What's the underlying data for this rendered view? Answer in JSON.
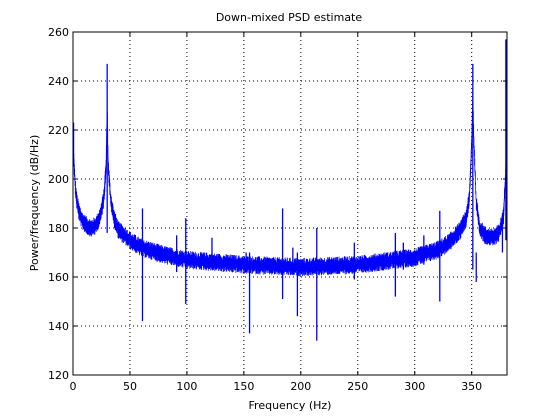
{
  "chart_data": {
    "type": "line",
    "title": "Down-mixed PSD estimate",
    "xlabel": "Frequency (Hz)",
    "ylabel": "Power/frequency (dB/Hz)",
    "xlim": [
      0,
      381
    ],
    "ylim": [
      120,
      260
    ],
    "xticks": [
      0,
      50,
      100,
      150,
      200,
      250,
      300,
      350
    ],
    "yticks": [
      120,
      140,
      160,
      180,
      200,
      220,
      240,
      260
    ],
    "xtick_labels": [
      "0",
      "50",
      "100",
      "150",
      "200",
      "250",
      "300",
      "350"
    ],
    "ytick_labels": [
      "120",
      "140",
      "160",
      "180",
      "200",
      "220",
      "240",
      "260"
    ],
    "grid": true,
    "grid_style": "dotted",
    "line_color": "#0000ff",
    "series": [
      {
        "name": "",
        "baseline": [
          [
            0,
            220
          ],
          [
            1,
            205
          ],
          [
            2,
            197
          ],
          [
            3,
            192
          ],
          [
            5,
            187
          ],
          [
            8,
            183
          ],
          [
            12,
            181
          ],
          [
            16,
            180
          ],
          [
            20,
            181
          ],
          [
            24,
            185
          ],
          [
            27,
            192
          ],
          [
            29,
            205
          ],
          [
            30,
            230
          ],
          [
            31,
            205
          ],
          [
            33,
            192
          ],
          [
            36,
            184
          ],
          [
            40,
            179
          ],
          [
            50,
            175
          ],
          [
            60,
            172
          ],
          [
            80,
            169
          ],
          [
            100,
            167
          ],
          [
            150,
            165
          ],
          [
            200,
            164
          ],
          [
            250,
            165
          ],
          [
            300,
            168
          ],
          [
            320,
            171
          ],
          [
            330,
            174
          ],
          [
            340,
            179
          ],
          [
            345,
            184
          ],
          [
            348,
            192
          ],
          [
            350,
            215
          ],
          [
            351,
            235
          ],
          [
            352,
            215
          ],
          [
            354,
            190
          ],
          [
            357,
            180
          ],
          [
            362,
            177
          ],
          [
            368,
            176
          ],
          [
            374,
            178
          ],
          [
            378,
            185
          ],
          [
            380,
            205
          ],
          [
            381,
            250
          ]
        ],
        "spikes": [
          {
            "x": 0.5,
            "max": 223,
            "min": 205
          },
          {
            "x": 30,
            "max": 247,
            "min": 178
          },
          {
            "x": 61,
            "max": 188,
            "min": 142
          },
          {
            "x": 91,
            "max": 177,
            "min": 162
          },
          {
            "x": 99,
            "max": 184,
            "min": 149
          },
          {
            "x": 122,
            "max": 176,
            "min": 163
          },
          {
            "x": 152,
            "max": 170,
            "min": 162
          },
          {
            "x": 155,
            "max": 170,
            "min": 137
          },
          {
            "x": 184,
            "max": 188,
            "min": 151
          },
          {
            "x": 193,
            "max": 172,
            "min": 161
          },
          {
            "x": 197,
            "max": 170,
            "min": 144
          },
          {
            "x": 214,
            "max": 180,
            "min": 134
          },
          {
            "x": 247,
            "max": 174,
            "min": 159
          },
          {
            "x": 283,
            "max": 178,
            "min": 152
          },
          {
            "x": 290,
            "max": 174,
            "min": 163
          },
          {
            "x": 308,
            "max": 177,
            "min": 165
          },
          {
            "x": 322,
            "max": 187,
            "min": 150
          },
          {
            "x": 351,
            "max": 247,
            "min": 163
          },
          {
            "x": 354,
            "max": 170,
            "min": 158
          },
          {
            "x": 377,
            "max": 186,
            "min": 170
          },
          {
            "x": 380,
            "max": 257,
            "min": 175
          }
        ],
        "noise_amplitude": 2.5
      }
    ]
  }
}
